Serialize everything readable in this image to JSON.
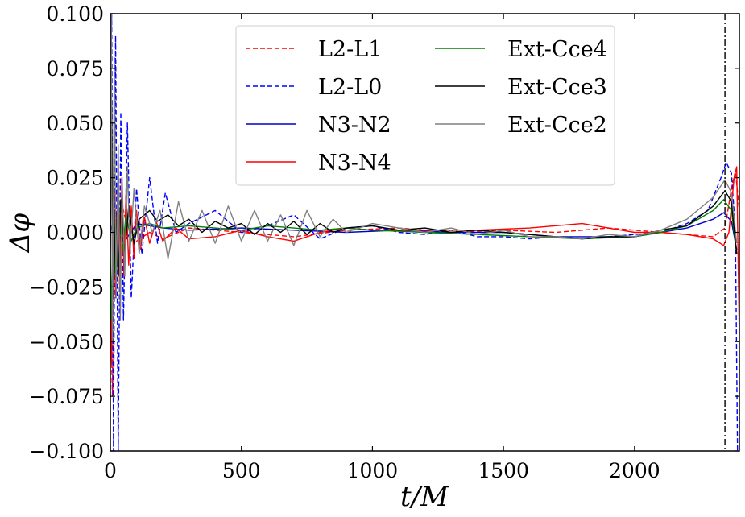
{
  "chart_data": {
    "type": "line",
    "xlabel": "t/M",
    "ylabel": "Δφ",
    "xlim": [
      0,
      2400
    ],
    "ylim": [
      -0.1,
      0.1
    ],
    "x_ticks": [
      0,
      500,
      1000,
      1500,
      2000
    ],
    "x_tick_labels": [
      "0",
      "500",
      "1000",
      "1500",
      "2000"
    ],
    "y_ticks": [
      -0.1,
      -0.075,
      -0.05,
      -0.025,
      0,
      0.025,
      0.05,
      0.075,
      0.1
    ],
    "y_tick_labels": [
      "−0.100",
      "−0.075",
      "−0.050",
      "−0.025",
      "0.000",
      "0.025",
      "0.050",
      "0.075",
      "0.100"
    ],
    "grid": false,
    "legend_position": "top-center",
    "vertical_lines": [
      {
        "x": 2345,
        "style": "dashdot",
        "color": "#000000"
      }
    ],
    "series": [
      {
        "name": "L2-L1",
        "color": "#ff0000",
        "dash": "dashed",
        "points": [
          [
            0,
            -0.03
          ],
          [
            8,
            -0.075
          ],
          [
            15,
            0.02
          ],
          [
            25,
            -0.01
          ],
          [
            40,
            0.015
          ],
          [
            60,
            0.005
          ],
          [
            100,
            -0.004
          ],
          [
            150,
            0.0
          ],
          [
            200,
            -0.003
          ],
          [
            300,
            0.002
          ],
          [
            500,
            0.0
          ],
          [
            700,
            -0.002
          ],
          [
            900,
            0.001
          ],
          [
            1100,
            0.002
          ],
          [
            1300,
            0.0
          ],
          [
            1500,
            0.001
          ],
          [
            1700,
            0.0
          ],
          [
            1900,
            0.002
          ],
          [
            2000,
            0.001
          ],
          [
            2100,
            0.0
          ],
          [
            2200,
            -0.001
          ],
          [
            2300,
            -0.002
          ],
          [
            2345,
            0.002
          ],
          [
            2370,
            0.02
          ],
          [
            2385,
            0.028
          ],
          [
            2400,
            0.01
          ]
        ]
      },
      {
        "name": "L2-L0",
        "color": "#0000ff",
        "dash": "dashed",
        "points": [
          [
            0,
            0.05
          ],
          [
            5,
            0.1
          ],
          [
            12,
            -0.1
          ],
          [
            20,
            0.09
          ],
          [
            30,
            -0.1
          ],
          [
            40,
            0.055
          ],
          [
            50,
            -0.04
          ],
          [
            65,
            0.05
          ],
          [
            80,
            -0.03
          ],
          [
            100,
            0.02
          ],
          [
            120,
            -0.01
          ],
          [
            150,
            0.025
          ],
          [
            180,
            -0.005
          ],
          [
            210,
            0.018
          ],
          [
            250,
            0.0
          ],
          [
            300,
            0.004
          ],
          [
            400,
            0.01
          ],
          [
            500,
            0.0
          ],
          [
            600,
            0.003
          ],
          [
            700,
            0.008
          ],
          [
            800,
            -0.003
          ],
          [
            900,
            0.002
          ],
          [
            1000,
            0.003
          ],
          [
            1100,
            0.0
          ],
          [
            1200,
            -0.001
          ],
          [
            1300,
            0.001
          ],
          [
            1400,
            -0.002
          ],
          [
            1500,
            -0.002
          ],
          [
            1600,
            -0.003
          ],
          [
            1700,
            -0.002
          ],
          [
            1800,
            -0.003
          ],
          [
            1900,
            -0.002
          ],
          [
            2000,
            -0.001
          ],
          [
            2100,
            0.0
          ],
          [
            2200,
            0.004
          ],
          [
            2280,
            0.01
          ],
          [
            2330,
            0.025
          ],
          [
            2350,
            0.032
          ],
          [
            2370,
            0.027
          ],
          [
            2385,
            0.0
          ],
          [
            2393,
            -0.1
          ]
        ]
      },
      {
        "name": "N3-N2",
        "color": "#0000cc",
        "dash": "solid",
        "points": [
          [
            0,
            0.0
          ],
          [
            20,
            0.01
          ],
          [
            50,
            -0.005
          ],
          [
            100,
            0.004
          ],
          [
            200,
            0.002
          ],
          [
            300,
            0.001
          ],
          [
            500,
            0.002
          ],
          [
            700,
            0.001
          ],
          [
            900,
            0.0
          ],
          [
            1100,
            0.001
          ],
          [
            1300,
            0.0
          ],
          [
            1500,
            0.0
          ],
          [
            1700,
            -0.002
          ],
          [
            1900,
            -0.002
          ],
          [
            2000,
            -0.002
          ],
          [
            2100,
            0.0
          ],
          [
            2200,
            0.002
          ],
          [
            2300,
            0.006
          ],
          [
            2340,
            0.009
          ],
          [
            2370,
            0.005
          ],
          [
            2390,
            -0.008
          ]
        ]
      },
      {
        "name": "N3-N4",
        "color": "#ff0000",
        "dash": "solid",
        "points": [
          [
            0,
            -0.02
          ],
          [
            5,
            -0.06
          ],
          [
            12,
            0.02
          ],
          [
            20,
            -0.03
          ],
          [
            28,
            0.02
          ],
          [
            36,
            -0.025
          ],
          [
            44,
            0.025
          ],
          [
            52,
            -0.02
          ],
          [
            60,
            0.018
          ],
          [
            70,
            -0.015
          ],
          [
            80,
            0.012
          ],
          [
            90,
            -0.012
          ],
          [
            100,
            0.01
          ],
          [
            115,
            -0.008
          ],
          [
            130,
            0.007
          ],
          [
            150,
            -0.005
          ],
          [
            175,
            0.005
          ],
          [
            200,
            -0.004
          ],
          [
            250,
            0.002
          ],
          [
            300,
            -0.003
          ],
          [
            400,
            -0.002
          ],
          [
            500,
            0.001
          ],
          [
            600,
            -0.002
          ],
          [
            700,
            -0.004
          ],
          [
            800,
            0.0
          ],
          [
            900,
            0.002
          ],
          [
            1000,
            0.001
          ],
          [
            1200,
            0.001
          ],
          [
            1400,
            0.001
          ],
          [
            1600,
            0.002
          ],
          [
            1800,
            0.004
          ],
          [
            1900,
            0.002
          ],
          [
            2000,
            0.0
          ],
          [
            2100,
            0.0
          ],
          [
            2200,
            -0.001
          ],
          [
            2300,
            -0.003
          ],
          [
            2340,
            -0.006
          ],
          [
            2360,
            0.0
          ],
          [
            2380,
            0.025
          ],
          [
            2390,
            0.03
          ],
          [
            2400,
            -0.05
          ]
        ]
      },
      {
        "name": "Ext-Cce4",
        "color": "#008000",
        "dash": "solid",
        "points": [
          [
            0,
            -0.01
          ],
          [
            5,
            -0.04
          ],
          [
            10,
            0.02
          ],
          [
            20,
            -0.02
          ],
          [
            30,
            0.015
          ],
          [
            45,
            -0.01
          ],
          [
            60,
            0.008
          ],
          [
            80,
            -0.004
          ],
          [
            100,
            0.002
          ],
          [
            150,
            0.004
          ],
          [
            200,
            0.002
          ],
          [
            300,
            0.003
          ],
          [
            400,
            0.002
          ],
          [
            500,
            0.001
          ],
          [
            600,
            0.003
          ],
          [
            700,
            0.002
          ],
          [
            800,
            0.001
          ],
          [
            900,
            0.002
          ],
          [
            1000,
            0.001
          ],
          [
            1200,
            0.0
          ],
          [
            1400,
            -0.001
          ],
          [
            1600,
            -0.002
          ],
          [
            1800,
            -0.003
          ],
          [
            2000,
            -0.002
          ],
          [
            2100,
            0.0
          ],
          [
            2200,
            0.003
          ],
          [
            2300,
            0.01
          ],
          [
            2340,
            0.015
          ],
          [
            2370,
            0.01
          ],
          [
            2390,
            -0.01
          ]
        ]
      },
      {
        "name": "Ext-Cce3",
        "color": "#000000",
        "dash": "solid",
        "points": [
          [
            0,
            -0.01
          ],
          [
            5,
            0.06
          ],
          [
            12,
            -0.03
          ],
          [
            20,
            0.01
          ],
          [
            30,
            -0.02
          ],
          [
            40,
            0.015
          ],
          [
            55,
            -0.01
          ],
          [
            70,
            0.012
          ],
          [
            90,
            -0.005
          ],
          [
            110,
            0.006
          ],
          [
            150,
            0.01
          ],
          [
            180,
            0.005
          ],
          [
            220,
            0.008
          ],
          [
            260,
            0.003
          ],
          [
            300,
            0.006
          ],
          [
            350,
            0.0
          ],
          [
            400,
            0.005
          ],
          [
            450,
            0.002
          ],
          [
            500,
            0.004
          ],
          [
            550,
            -0.001
          ],
          [
            600,
            0.004
          ],
          [
            650,
            0.0
          ],
          [
            700,
            0.005
          ],
          [
            750,
            -0.001
          ],
          [
            800,
            0.004
          ],
          [
            850,
            0.0
          ],
          [
            900,
            0.002
          ],
          [
            1000,
            0.003
          ],
          [
            1100,
            0.001
          ],
          [
            1200,
            0.002
          ],
          [
            1300,
            0.0
          ],
          [
            1400,
            0.001
          ],
          [
            1500,
            0.0
          ],
          [
            1600,
            -0.001
          ],
          [
            1700,
            -0.002
          ],
          [
            1800,
            -0.003
          ],
          [
            1900,
            -0.002
          ],
          [
            2000,
            -0.002
          ],
          [
            2100,
            0.001
          ],
          [
            2200,
            0.003
          ],
          [
            2300,
            0.012
          ],
          [
            2345,
            0.019
          ],
          [
            2370,
            0.014
          ],
          [
            2390,
            -0.01
          ]
        ]
      },
      {
        "name": "Ext-Cce2",
        "color": "#808080",
        "dash": "solid",
        "points": [
          [
            0,
            0.01
          ],
          [
            3,
            0.1
          ],
          [
            8,
            -0.05
          ],
          [
            15,
            0.08
          ],
          [
            22,
            -0.03
          ],
          [
            30,
            0.04
          ],
          [
            38,
            -0.04
          ],
          [
            45,
            0.025
          ],
          [
            55,
            -0.02
          ],
          [
            65,
            0.03
          ],
          [
            75,
            -0.01
          ],
          [
            90,
            0.02
          ],
          [
            110,
            -0.01
          ],
          [
            130,
            0.012
          ],
          [
            160,
            0.0
          ],
          [
            190,
            0.01
          ],
          [
            220,
            -0.012
          ],
          [
            260,
            0.014
          ],
          [
            300,
            -0.004
          ],
          [
            350,
            0.01
          ],
          [
            400,
            -0.005
          ],
          [
            450,
            0.012
          ],
          [
            500,
            -0.004
          ],
          [
            550,
            0.01
          ],
          [
            600,
            -0.004
          ],
          [
            650,
            0.008
          ],
          [
            700,
            -0.006
          ],
          [
            750,
            0.01
          ],
          [
            800,
            -0.002
          ],
          [
            850,
            0.006
          ],
          [
            900,
            0.0
          ],
          [
            1000,
            0.004
          ],
          [
            1100,
            0.002
          ],
          [
            1200,
            0.0
          ],
          [
            1300,
            0.002
          ],
          [
            1400,
            -0.001
          ],
          [
            1500,
            0.001
          ],
          [
            1600,
            -0.002
          ],
          [
            1700,
            -0.002
          ],
          [
            1800,
            -0.003
          ],
          [
            1900,
            -0.001
          ],
          [
            2000,
            -0.002
          ],
          [
            2100,
            0.001
          ],
          [
            2200,
            0.006
          ],
          [
            2300,
            0.016
          ],
          [
            2345,
            0.024
          ],
          [
            2370,
            0.018
          ],
          [
            2390,
            -0.005
          ]
        ]
      }
    ]
  }
}
